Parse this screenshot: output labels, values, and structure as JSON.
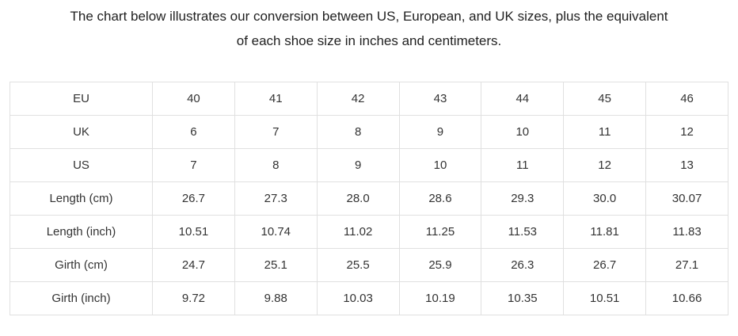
{
  "heading": {
    "line1": "The chart below illustrates our conversion between US, European, and UK sizes, plus the equivalent",
    "line2": "of each shoe size in inches and centimeters."
  },
  "table": {
    "rows": [
      {
        "label": "EU",
        "values": [
          "40",
          "41",
          "42",
          "43",
          "44",
          "45",
          "46"
        ]
      },
      {
        "label": "UK",
        "values": [
          "6",
          "7",
          "8",
          "9",
          "10",
          "11",
          "12"
        ]
      },
      {
        "label": "US",
        "values": [
          "7",
          "8",
          "9",
          "10",
          "11",
          "12",
          "13"
        ]
      },
      {
        "label": "Length (cm)",
        "values": [
          "26.7",
          "27.3",
          "28.0",
          "28.6",
          "29.3",
          "30.0",
          "30.07"
        ]
      },
      {
        "label": "Length (inch)",
        "values": [
          "10.51",
          "10.74",
          "11.02",
          "11.25",
          "11.53",
          "11.81",
          "11.83"
        ]
      },
      {
        "label": "Girth (cm)",
        "values": [
          "24.7",
          "25.1",
          "25.5",
          "25.9",
          "26.3",
          "26.7",
          "27.1"
        ]
      },
      {
        "label": "Girth (inch)",
        "values": [
          "9.72",
          "9.88",
          "10.03",
          "10.19",
          "10.35",
          "10.51",
          "10.66"
        ]
      }
    ]
  },
  "colors": {
    "background": "#ffffff",
    "heading_text": "#1f1f1f",
    "cell_text": "#333333",
    "table_border": "#e0e0e0"
  }
}
